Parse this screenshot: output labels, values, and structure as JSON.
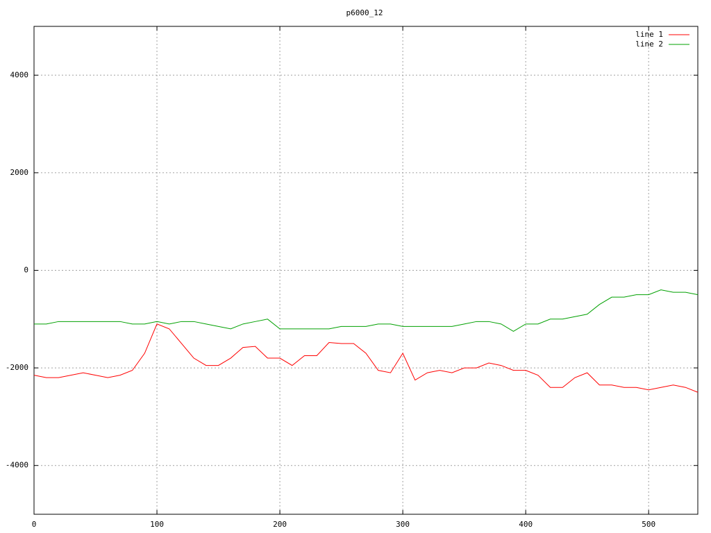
{
  "chart_data": {
    "type": "line",
    "title": "p6000_12",
    "x": [
      0,
      10,
      20,
      30,
      40,
      50,
      60,
      70,
      80,
      90,
      100,
      110,
      120,
      130,
      140,
      150,
      160,
      170,
      180,
      190,
      200,
      210,
      220,
      230,
      240,
      250,
      260,
      270,
      280,
      290,
      300,
      310,
      320,
      330,
      340,
      350,
      360,
      370,
      380,
      390,
      400,
      410,
      420,
      430,
      440,
      450,
      460,
      470,
      480,
      490,
      500,
      510,
      520,
      530,
      540
    ],
    "series": [
      {
        "name": "line 1",
        "color": "#ff0000",
        "values": [
          -2150,
          -2200,
          -2200,
          -2150,
          -2100,
          -2150,
          -2200,
          -2150,
          -2050,
          -1700,
          -1100,
          -1200,
          -1500,
          -1800,
          -1950,
          -1950,
          -1800,
          -1580,
          -1560,
          -1800,
          -1800,
          -1950,
          -1750,
          -1750,
          -1480,
          -1500,
          -1500,
          -1700,
          -2050,
          -2100,
          -1700,
          -2250,
          -2100,
          -2050,
          -2100,
          -2000,
          -2000,
          -1900,
          -1950,
          -2050,
          -2050,
          -2150,
          -2400,
          -2400,
          -2200,
          -2100,
          -2350,
          -2350,
          -2400,
          -2400,
          -2450,
          -2400,
          -2350,
          -2400,
          -2500
        ]
      },
      {
        "name": "line 2",
        "color": "#00a000",
        "values": [
          -1100,
          -1100,
          -1050,
          -1050,
          -1050,
          -1050,
          -1050,
          -1050,
          -1100,
          -1100,
          -1050,
          -1100,
          -1050,
          -1050,
          -1100,
          -1150,
          -1200,
          -1100,
          -1050,
          -1000,
          -1200,
          -1200,
          -1200,
          -1200,
          -1200,
          -1150,
          -1150,
          -1150,
          -1100,
          -1100,
          -1150,
          -1150,
          -1150,
          -1150,
          -1150,
          -1100,
          -1050,
          -1050,
          -1100,
          -1250,
          -1100,
          -1100,
          -1000,
          -1000,
          -950,
          -900,
          -700,
          -550,
          -550,
          -500,
          -500,
          -400,
          -450,
          -450,
          -500
        ]
      }
    ],
    "xlim": [
      0,
      540
    ],
    "xticks": [
      0,
      100,
      200,
      300,
      400,
      500
    ],
    "ylim": [
      -5000,
      5000
    ],
    "yticks": [
      -4000,
      -2000,
      0,
      2000,
      4000
    ],
    "grid": true,
    "legend": "top-right"
  }
}
